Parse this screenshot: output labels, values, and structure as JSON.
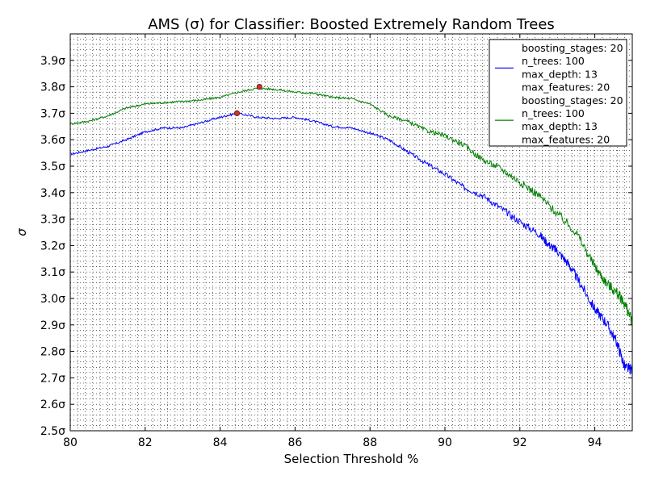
{
  "chart_data": {
    "type": "line",
    "title": "AMS (σ) for Classifier: Boosted Extremely Random Trees",
    "xlabel": "Selection Threshold %",
    "ylabel": "σ",
    "xlim": [
      80,
      95
    ],
    "ylim": [
      2.5,
      4.0
    ],
    "x_ticks": [
      80,
      82,
      84,
      86,
      88,
      90,
      92,
      94
    ],
    "x_tick_labels": [
      "80",
      "82",
      "84",
      "86",
      "88",
      "90",
      "92",
      "94"
    ],
    "y_ticks": [
      2.5,
      2.6,
      2.7,
      2.8,
      2.9,
      3.0,
      3.1,
      3.2,
      3.3,
      3.4,
      3.5,
      3.6,
      3.7,
      3.8,
      3.9
    ],
    "y_tick_labels": [
      "2.5σ",
      "2.6σ",
      "2.7σ",
      "2.8σ",
      "2.9σ",
      "3.0σ",
      "3.1σ",
      "3.2σ",
      "3.3σ",
      "3.4σ",
      "3.5σ",
      "3.6σ",
      "3.7σ",
      "3.8σ",
      "3.9σ"
    ],
    "grid": true,
    "legend_position": "top-right",
    "series": [
      {
        "color": "#0000ff",
        "legend_lines": [
          "boosting_stages: 20",
          "n_trees: 100",
          "max_depth: 13",
          "max_features: 20"
        ],
        "x": [
          80.0,
          80.5,
          81.0,
          81.5,
          82.0,
          82.5,
          83.0,
          83.5,
          84.0,
          84.45,
          85.0,
          85.5,
          86.0,
          86.5,
          87.0,
          87.5,
          88.0,
          88.5,
          89.0,
          89.5,
          90.0,
          90.5,
          91.0,
          91.5,
          92.0,
          92.5,
          92.8,
          93.0,
          93.3,
          93.6,
          94.0,
          94.3,
          94.6,
          94.8,
          95.0
        ],
        "y": [
          3.545,
          3.56,
          3.575,
          3.6,
          3.63,
          3.645,
          3.645,
          3.665,
          3.685,
          3.7,
          3.685,
          3.68,
          3.685,
          3.67,
          3.65,
          3.645,
          3.625,
          3.6,
          3.555,
          3.51,
          3.47,
          3.42,
          3.39,
          3.34,
          3.29,
          3.245,
          3.2,
          3.18,
          3.13,
          3.06,
          2.96,
          2.91,
          2.83,
          2.74,
          2.73
        ],
        "marker": {
          "x": 84.45,
          "y": 3.7,
          "color": "#c0392b"
        }
      },
      {
        "color": "#008000",
        "legend_lines": [
          "boosting_stages: 20",
          "n_trees: 100",
          "max_depth: 13",
          "max_features: 20"
        ],
        "x": [
          80.0,
          80.5,
          81.0,
          81.5,
          82.0,
          82.5,
          83.0,
          83.5,
          84.0,
          84.5,
          85.0,
          85.5,
          86.0,
          86.5,
          87.0,
          87.5,
          88.0,
          88.5,
          89.0,
          89.5,
          90.0,
          90.5,
          91.0,
          91.5,
          92.0,
          92.5,
          93.0,
          93.5,
          94.0,
          94.3,
          94.6,
          94.8,
          95.0
        ],
        "y": [
          3.66,
          3.67,
          3.69,
          3.72,
          3.735,
          3.74,
          3.745,
          3.75,
          3.76,
          3.78,
          3.795,
          3.79,
          3.78,
          3.775,
          3.76,
          3.755,
          3.735,
          3.69,
          3.67,
          3.635,
          3.615,
          3.58,
          3.525,
          3.49,
          3.44,
          3.39,
          3.32,
          3.25,
          3.12,
          3.06,
          3.02,
          2.98,
          2.91
        ],
        "marker": {
          "x": 85.05,
          "y": 3.8,
          "color": "#c0392b"
        }
      }
    ]
  }
}
